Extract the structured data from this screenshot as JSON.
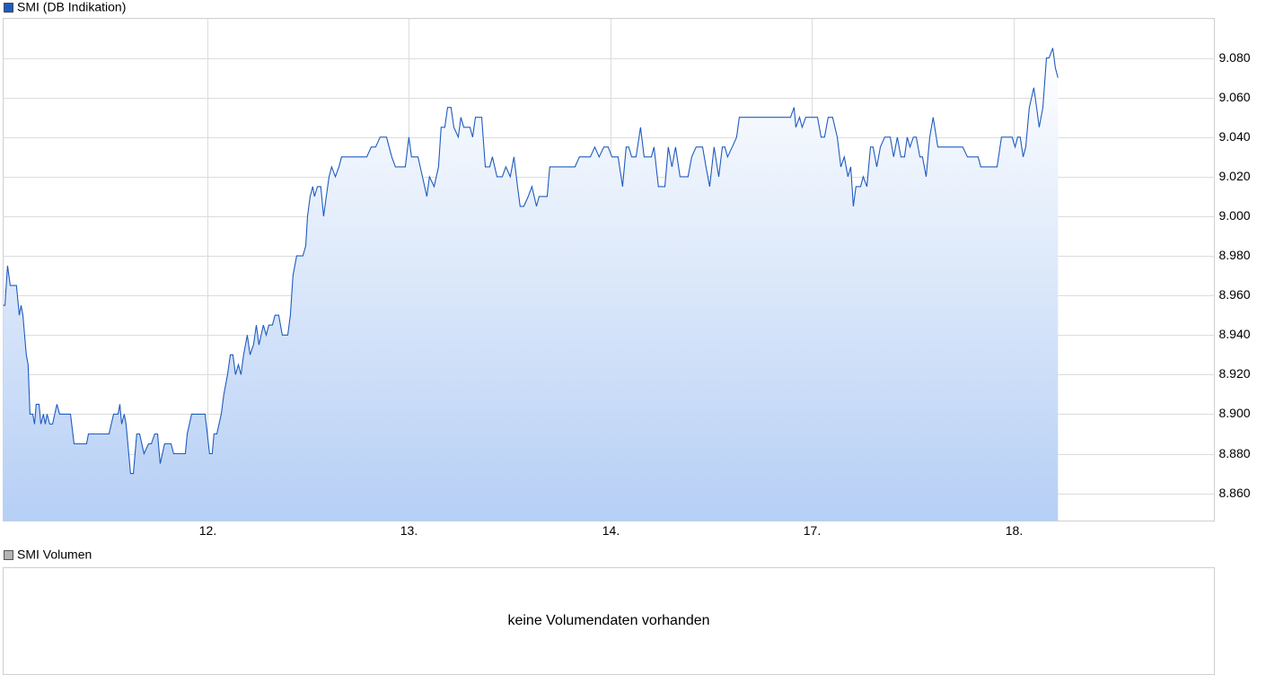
{
  "chart_data": [
    {
      "type": "line",
      "legend": "top-left",
      "grid": true,
      "xlim": [
        -0.013,
        5.996
      ],
      "ylim": [
        8846,
        9100
      ],
      "xticks": [
        {
          "value": 1,
          "label": "12."
        },
        {
          "value": 2,
          "label": "13."
        },
        {
          "value": 3,
          "label": "14."
        },
        {
          "value": 4,
          "label": "17."
        },
        {
          "value": 5,
          "label": "18."
        }
      ],
      "yticks": [
        {
          "value": 8860,
          "label": "8.860"
        },
        {
          "value": 8880,
          "label": "8.880"
        },
        {
          "value": 8900,
          "label": "8.900"
        },
        {
          "value": 8920,
          "label": "8.920"
        },
        {
          "value": 8940,
          "label": "8.940"
        },
        {
          "value": 8960,
          "label": "8.960"
        },
        {
          "value": 8980,
          "label": "8.980"
        },
        {
          "value": 9000,
          "label": "9.000"
        },
        {
          "value": 9020,
          "label": "9.020"
        },
        {
          "value": 9040,
          "label": "9.040"
        },
        {
          "value": 9060,
          "label": "9.060"
        },
        {
          "value": 9080,
          "label": "9.080"
        }
      ],
      "series": [
        {
          "name": "SMI (DB Indikation)",
          "color": "#1f5cbf",
          "x": [
            -0.013,
            -0.004,
            0.009,
            0.022,
            0.053,
            0.067,
            0.076,
            0.085,
            0.102,
            0.111,
            0.12,
            0.134,
            0.143,
            0.151,
            0.165,
            0.174,
            0.187,
            0.196,
            0.205,
            0.218,
            0.232,
            0.254,
            0.267,
            0.321,
            0.339,
            0.401,
            0.41,
            0.512,
            0.535,
            0.557,
            0.566,
            0.575,
            0.588,
            0.597,
            0.619,
            0.633,
            0.65,
            0.664,
            0.686,
            0.708,
            0.722,
            0.739,
            0.753,
            0.766,
            0.788,
            0.82,
            0.833,
            0.891,
            0.9,
            0.922,
            0.989,
            1.011,
            1.024,
            1.033,
            1.047,
            1.069,
            1.082,
            1.1,
            1.114,
            1.127,
            1.14,
            1.154,
            1.167,
            1.18,
            1.198,
            1.212,
            1.229,
            1.243,
            1.256,
            1.278,
            1.292,
            1.305,
            1.323,
            1.336,
            1.354,
            1.372,
            1.399,
            1.412,
            1.425,
            1.443,
            1.474,
            1.488,
            1.497,
            1.51,
            1.523,
            1.532,
            1.546,
            1.563,
            1.577,
            1.59,
            1.604,
            1.617,
            1.635,
            1.653,
            1.666,
            1.791,
            1.813,
            1.835,
            1.857,
            1.889,
            1.902,
            1.915,
            1.933,
            1.982,
            2.0,
            2.013,
            2.045,
            2.067,
            2.089,
            2.102,
            2.125,
            2.147,
            2.16,
            2.178,
            2.192,
            2.209,
            2.223,
            2.245,
            2.258,
            2.272,
            2.303,
            2.316,
            2.33,
            2.361,
            2.379,
            2.401,
            2.414,
            2.437,
            2.463,
            2.481,
            2.503,
            2.521,
            2.539,
            2.552,
            2.57,
            2.592,
            2.61,
            2.633,
            2.646,
            2.686,
            2.699,
            2.824,
            2.846,
            2.9,
            2.922,
            2.944,
            2.967,
            2.989,
            3.007,
            3.038,
            3.06,
            3.078,
            3.091,
            3.105,
            3.127,
            3.149,
            3.167,
            3.203,
            3.216,
            3.238,
            3.27,
            3.287,
            3.305,
            3.323,
            3.345,
            3.385,
            3.403,
            3.425,
            3.457,
            3.474,
            3.492,
            3.514,
            3.537,
            3.555,
            3.568,
            3.581,
            3.604,
            3.626,
            3.639,
            3.675,
            3.893,
            3.911,
            3.92,
            3.938,
            3.951,
            3.969,
            4.027,
            4.045,
            4.062,
            4.08,
            4.102,
            4.125,
            4.143,
            4.16,
            4.178,
            4.192,
            4.205,
            4.218,
            4.241,
            4.254,
            4.272,
            4.29,
            4.303,
            4.321,
            4.339,
            4.361,
            4.388,
            4.405,
            4.423,
            4.441,
            4.459,
            4.472,
            4.486,
            4.503,
            4.517,
            4.535,
            4.548,
            4.566,
            4.584,
            4.601,
            4.624,
            4.748,
            4.771,
            4.824,
            4.837,
            4.918,
            4.94,
            4.993,
            5.007,
            5.02,
            5.033,
            5.047,
            5.06,
            5.078,
            5.1,
            5.114,
            5.127,
            5.145,
            5.163,
            5.176,
            5.194,
            5.207,
            5.22
          ],
          "values": [
            8955,
            8955,
            8975,
            8965,
            8965,
            8950,
            8955,
            8950,
            8930,
            8925,
            8900,
            8900,
            8895,
            8905,
            8905,
            8895,
            8900,
            8895,
            8900,
            8895,
            8895,
            8905,
            8900,
            8900,
            8885,
            8885,
            8890,
            8890,
            8900,
            8900,
            8905,
            8895,
            8900,
            8895,
            8870,
            8870,
            8890,
            8890,
            8880,
            8885,
            8885,
            8890,
            8890,
            8875,
            8885,
            8885,
            8880,
            8880,
            8890,
            8900,
            8900,
            8880,
            8880,
            8890,
            8890,
            8900,
            8910,
            8920,
            8930,
            8930,
            8920,
            8925,
            8920,
            8930,
            8940,
            8930,
            8935,
            8945,
            8935,
            8945,
            8940,
            8945,
            8945,
            8950,
            8950,
            8940,
            8940,
            8950,
            8970,
            8980,
            8980,
            8985,
            9000,
            9010,
            9015,
            9010,
            9015,
            9015,
            9000,
            9010,
            9020,
            9025,
            9020,
            9025,
            9030,
            9030,
            9035,
            9035,
            9040,
            9040,
            9035,
            9030,
            9025,
            9025,
            9040,
            9030,
            9030,
            9020,
            9010,
            9020,
            9015,
            9025,
            9045,
            9045,
            9055,
            9055,
            9045,
            9040,
            9050,
            9045,
            9045,
            9040,
            9050,
            9050,
            9025,
            9025,
            9030,
            9020,
            9020,
            9025,
            9020,
            9030,
            9015,
            9005,
            9005,
            9010,
            9015,
            9005,
            9010,
            9010,
            9025,
            9025,
            9030,
            9030,
            9035,
            9030,
            9035,
            9035,
            9030,
            9030,
            9015,
            9035,
            9035,
            9030,
            9030,
            9045,
            9030,
            9030,
            9035,
            9015,
            9015,
            9035,
            9025,
            9035,
            9020,
            9020,
            9030,
            9035,
            9035,
            9025,
            9015,
            9035,
            9020,
            9035,
            9035,
            9030,
            9035,
            9040,
            9050,
            9050,
            9050,
            9055,
            9045,
            9050,
            9045,
            9050,
            9050,
            9040,
            9040,
            9050,
            9050,
            9040,
            9025,
            9030,
            9020,
            9025,
            9005,
            9015,
            9015,
            9020,
            9015,
            9035,
            9035,
            9025,
            9035,
            9040,
            9040,
            9030,
            9040,
            9030,
            9030,
            9040,
            9035,
            9040,
            9040,
            9030,
            9030,
            9020,
            9040,
            9050,
            9035,
            9035,
            9030,
            9030,
            9025,
            9025,
            9040,
            9040,
            9035,
            9040,
            9040,
            9030,
            9035,
            9055,
            9065,
            9055,
            9045,
            9055,
            9080,
            9080,
            9085,
            9075,
            9070
          ]
        }
      ]
    },
    {
      "type": "bar",
      "legend": "top-left",
      "series": [
        {
          "name": "SMI Volumen",
          "color": "#b4b4b4",
          "values": []
        }
      ],
      "message": "keine Volumendaten vorhanden"
    }
  ]
}
